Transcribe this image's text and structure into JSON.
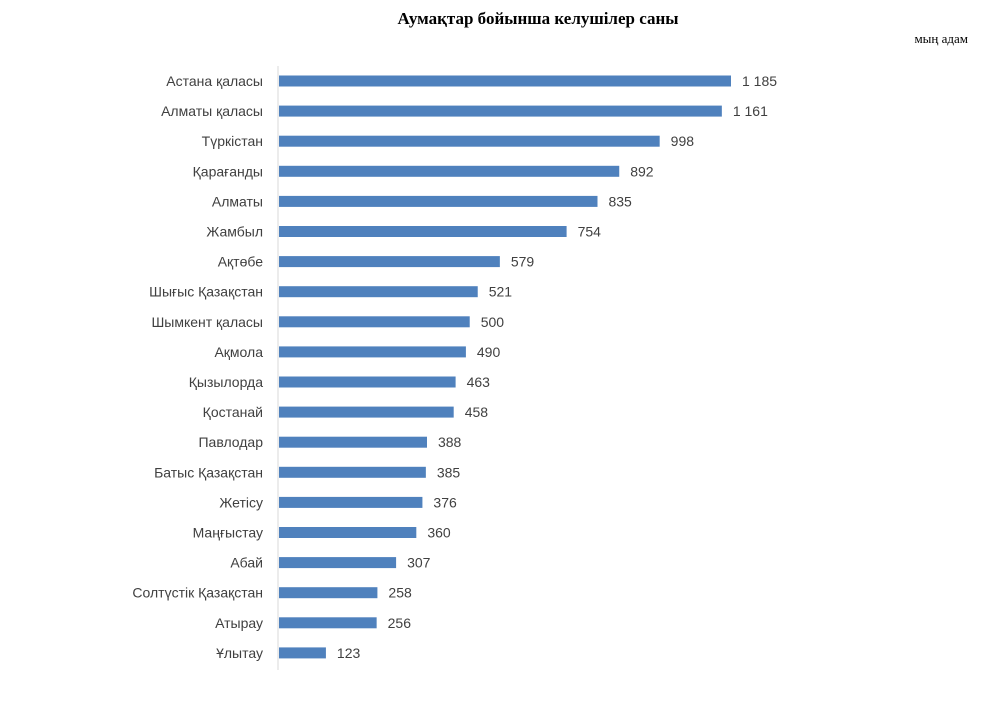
{
  "chart_data": {
    "type": "bar",
    "orientation": "horizontal",
    "title": "Аумақтар бойынша келушілер саны",
    "unit_label": "мың адам",
    "categories": [
      "Астана қаласы",
      "Алматы қаласы",
      "Түркістан",
      "Қарағанды",
      "Алматы",
      "Жамбыл",
      "Ақтөбе",
      "Шығыс Қазақстан",
      "Шымкент қаласы",
      "Ақмола",
      "Қызылорда",
      "Қостанай",
      "Павлодар",
      "Батыс Қазақстан",
      "Жетісу",
      "Маңғыстау",
      "Абай",
      "Солтүстік Қазақстан",
      "Атырау",
      "Ұлытау"
    ],
    "values": [
      1185,
      1161,
      998,
      892,
      835,
      754,
      579,
      521,
      500,
      490,
      463,
      458,
      388,
      385,
      376,
      360,
      307,
      258,
      256,
      123
    ],
    "value_labels": [
      "1 185",
      "1 161",
      "998",
      "892",
      "835",
      "754",
      "579",
      "521",
      "500",
      "490",
      "463",
      "458",
      "388",
      "385",
      "376",
      "360",
      "307",
      "258",
      "256",
      "123"
    ],
    "bar_color": "#4f81bd",
    "grid": false,
    "legend": "none"
  }
}
